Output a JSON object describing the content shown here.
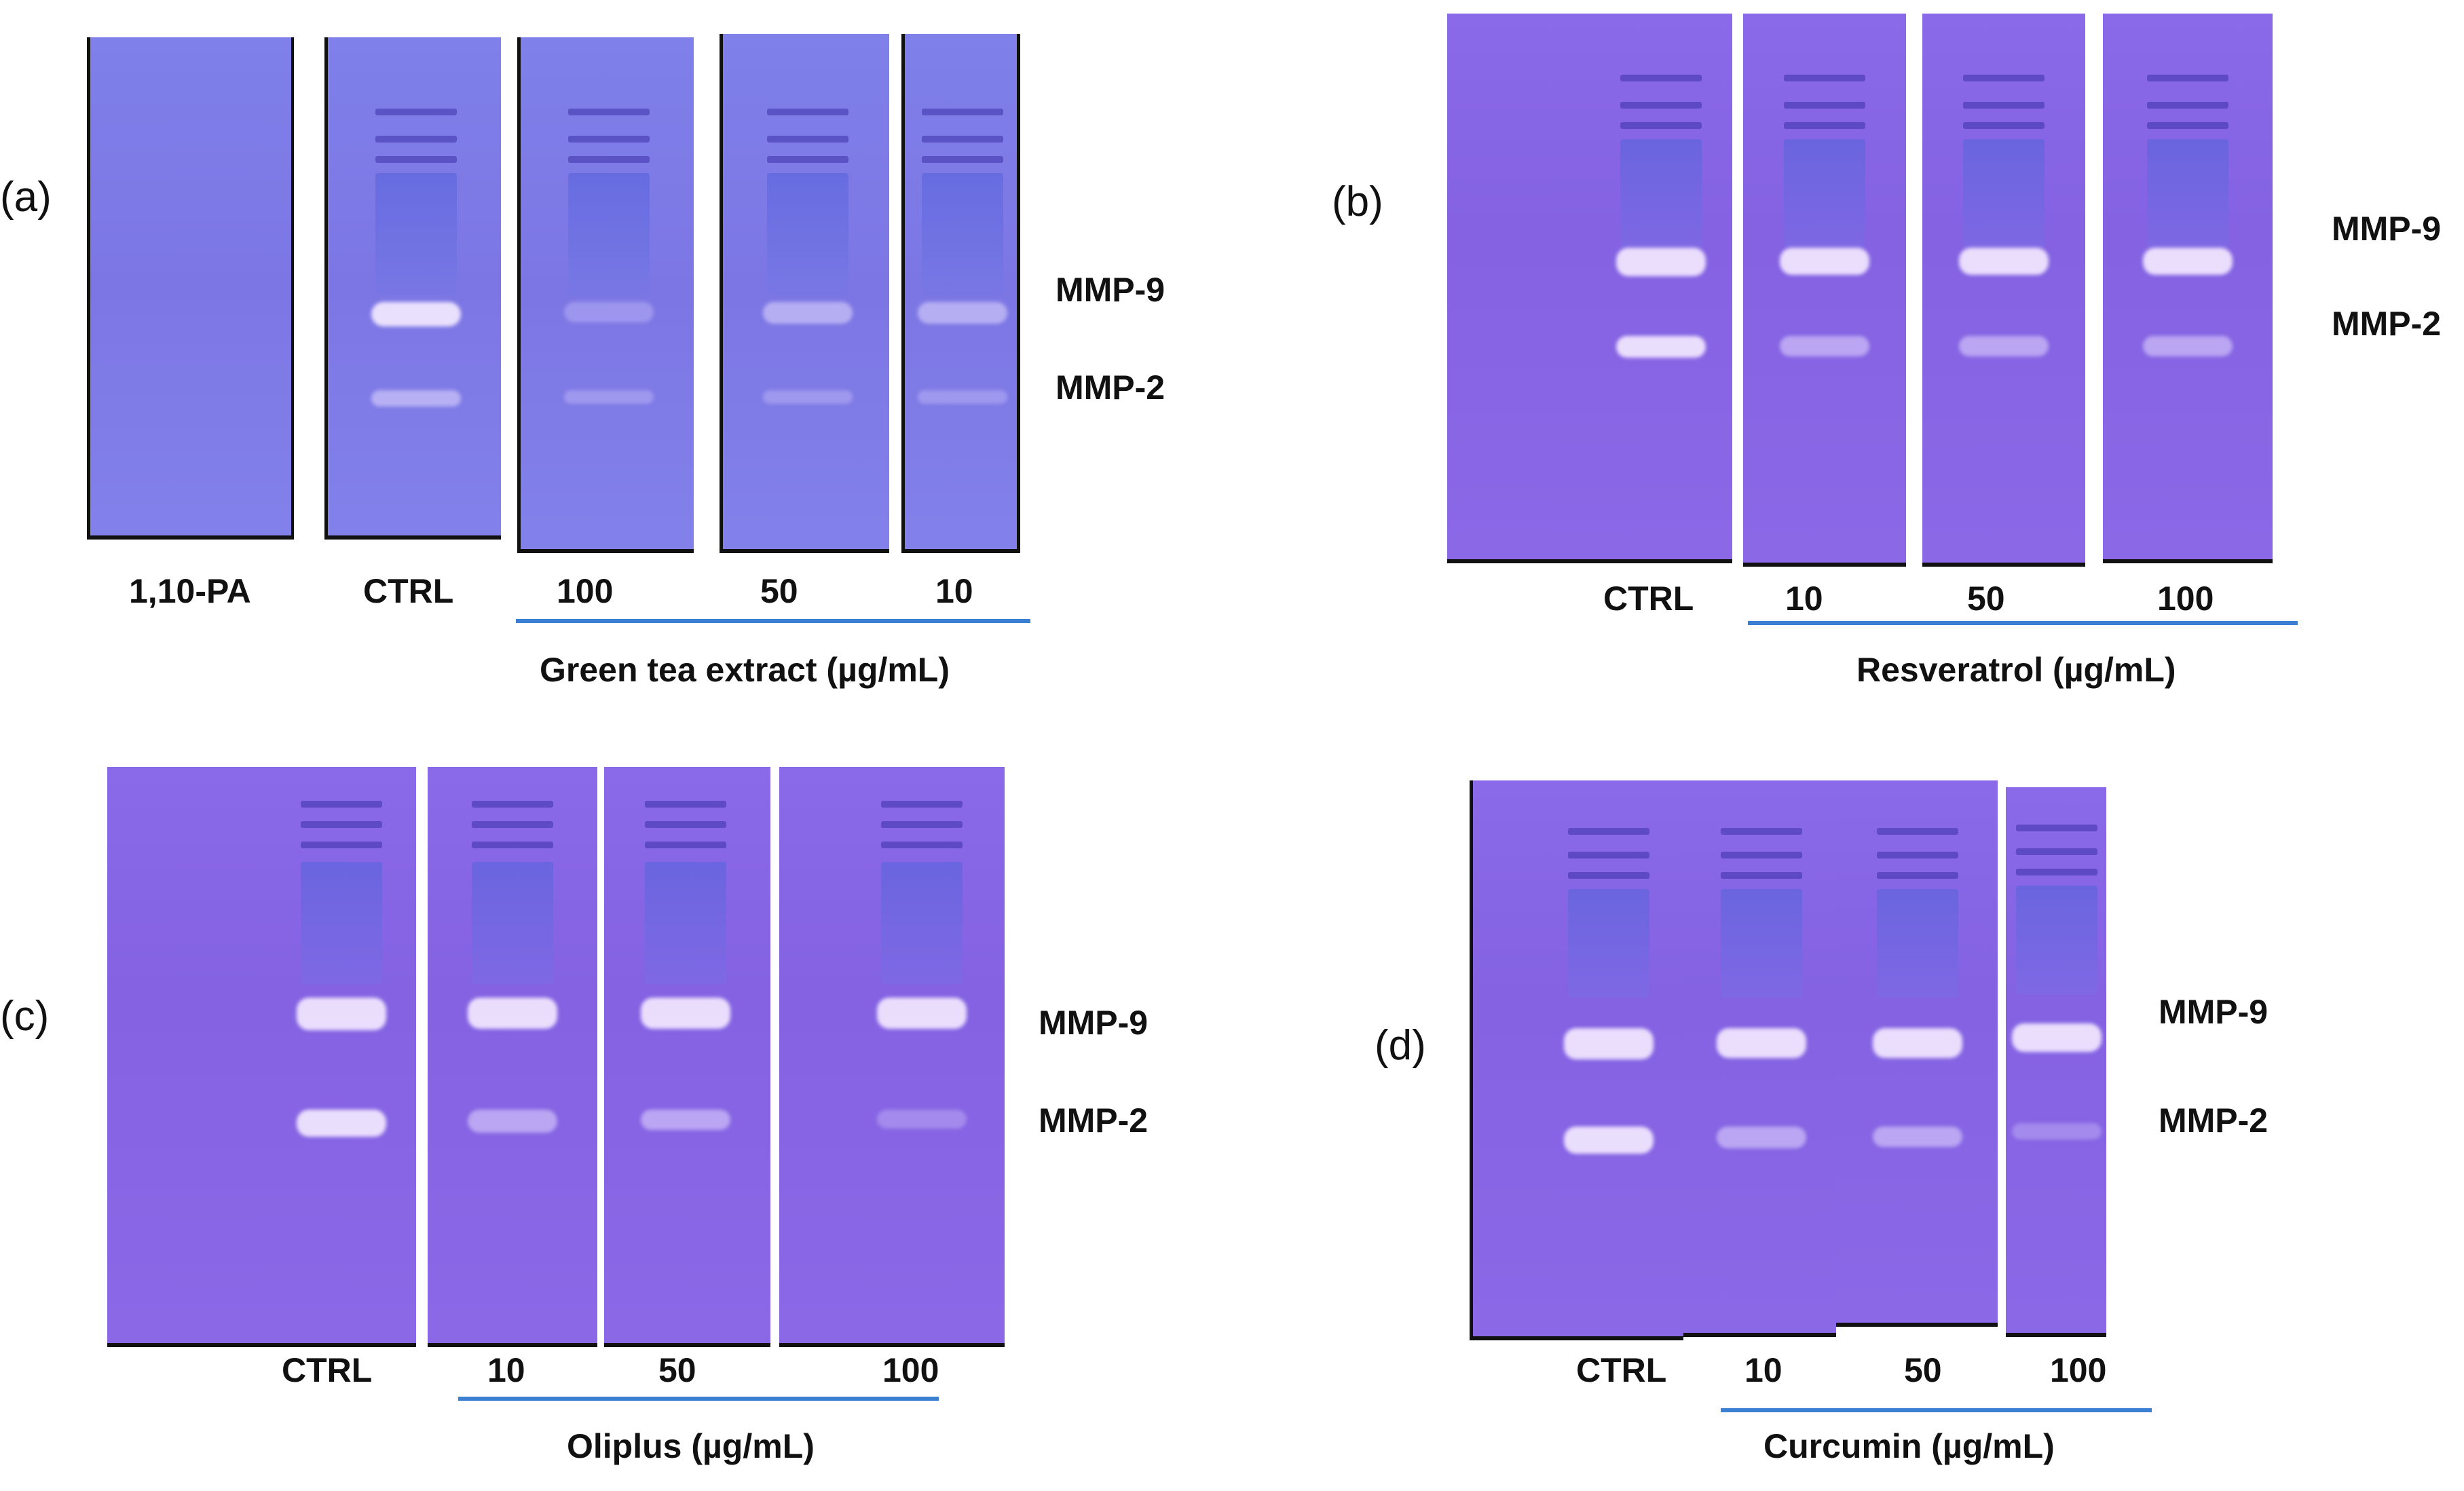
{
  "panels": {
    "a": {
      "letter": "(a)",
      "lanes": [
        "1,10-PA",
        "CTRL",
        "100",
        "50",
        "10"
      ],
      "treatment": "Green tea extract (µg/mL)",
      "mmp9": "MMP-9",
      "mmp2": "MMP-2"
    },
    "b": {
      "letter": "(b)",
      "lanes": [
        "CTRL",
        "10",
        "50",
        "100"
      ],
      "treatment": "Resveratrol (µg/mL)",
      "mmp9": "MMP-9",
      "mmp2": "MMP-2"
    },
    "c": {
      "letter": "(c)",
      "lanes": [
        "CTRL",
        "10",
        "50",
        "100"
      ],
      "treatment": "Oliplus (µg/mL)",
      "mmp9": "MMP-9",
      "mmp2": "MMP-2"
    },
    "d": {
      "letter": "(d)",
      "lanes": [
        "CTRL",
        "10",
        "50",
        "100"
      ],
      "treatment": "Curcumin (µg/mL)",
      "mmp9": "MMP-9",
      "mmp2": "MMP-2"
    }
  },
  "colors": {
    "gel_violet": "#8462e2",
    "gel_blue": "#7c76e4",
    "treatment_bar": "#3a7fd1"
  }
}
